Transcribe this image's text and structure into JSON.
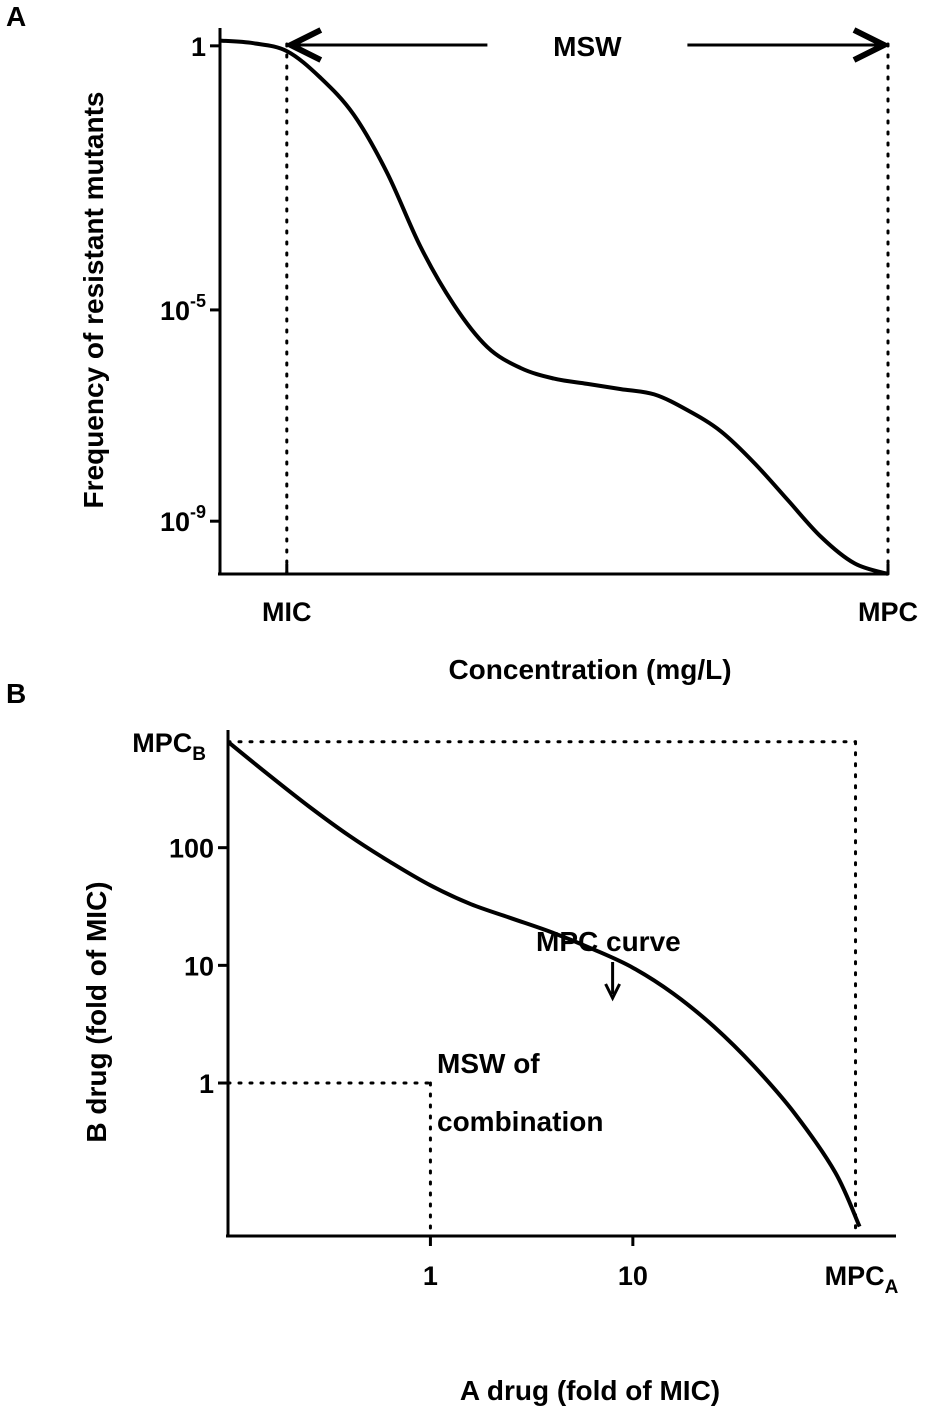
{
  "chart_data": [
    {
      "panel": "A",
      "type": "line",
      "title": "",
      "xlabel": "Concentration (mg/L)",
      "ylabel": "Frequency of resistant mutants",
      "y_scale": "log10",
      "y_ticks": [
        {
          "value": 0,
          "label_base": "1",
          "label_exp": ""
        },
        {
          "value": -5,
          "label_base": "10",
          "label_exp": "-5"
        },
        {
          "value": -9,
          "label_base": "10",
          "label_exp": "-9"
        }
      ],
      "x_markers": [
        {
          "name": "MIC",
          "label": "MIC",
          "x": 1
        },
        {
          "name": "MPC",
          "label": "MPC",
          "x": 10
        }
      ],
      "xlim": [
        0,
        10
      ],
      "ylim": [
        -10,
        0.3
      ],
      "series": [
        {
          "name": "mutant frequency",
          "x": [
            0,
            0.5,
            1,
            1.5,
            2,
            2.5,
            3,
            3.5,
            4,
            4.5,
            5,
            5.5,
            6,
            6.5,
            7,
            7.5,
            8,
            8.5,
            9,
            9.5,
            10
          ],
          "y": [
            0.1,
            0.05,
            -0.1,
            -0.6,
            -1.3,
            -2.4,
            -3.8,
            -4.9,
            -5.7,
            -6.1,
            -6.3,
            -6.4,
            -6.5,
            -6.6,
            -6.9,
            -7.3,
            -7.9,
            -8.6,
            -9.3,
            -9.8,
            -10
          ]
        }
      ],
      "annotations": [
        {
          "name": "msw",
          "text": "MSW",
          "type": "double-arrow",
          "from_x": 1,
          "to_x": 10
        }
      ]
    },
    {
      "panel": "B",
      "type": "line",
      "title": "",
      "xlabel": "A drug (fold of MIC)",
      "ylabel": "B drug (fold of MIC)",
      "x_scale": "log10",
      "y_scale": "log10",
      "x_ticks": [
        {
          "value": 0,
          "label_base": "1",
          "label_sub": ""
        },
        {
          "value": 1,
          "label_base": "10",
          "label_sub": ""
        },
        {
          "value": 2.1,
          "label_base": "MPC",
          "label_sub": "A"
        }
      ],
      "y_ticks": [
        {
          "value": 0,
          "label_base": "1",
          "label_sub": ""
        },
        {
          "value": 1,
          "label_base": "10",
          "label_sub": ""
        },
        {
          "value": 2,
          "label_base": "100",
          "label_sub": ""
        },
        {
          "value": 2.9,
          "label_base": "MPC",
          "label_sub": "B"
        }
      ],
      "xlim": [
        -1,
        2.3
      ],
      "ylim": [
        -1.3,
        3
      ],
      "series": [
        {
          "name": "MPC curve",
          "x": [
            -1,
            -0.8,
            -0.6,
            -0.4,
            -0.2,
            0,
            0.2,
            0.4,
            0.6,
            0.8,
            1,
            1.2,
            1.4,
            1.6,
            1.8,
            2,
            2.12
          ],
          "y": [
            2.9,
            2.62,
            2.35,
            2.1,
            1.88,
            1.68,
            1.52,
            1.4,
            1.28,
            1.14,
            0.98,
            0.76,
            0.48,
            0.14,
            -0.26,
            -0.76,
            -1.22
          ]
        }
      ],
      "annotations": [
        {
          "name": "mpc-curve-label",
          "text": "MPC curve",
          "arrow_to_x": 0.9
        },
        {
          "name": "msw-label-1",
          "text": "MSW of"
        },
        {
          "name": "msw-label-2",
          "text": "combination"
        }
      ]
    }
  ]
}
